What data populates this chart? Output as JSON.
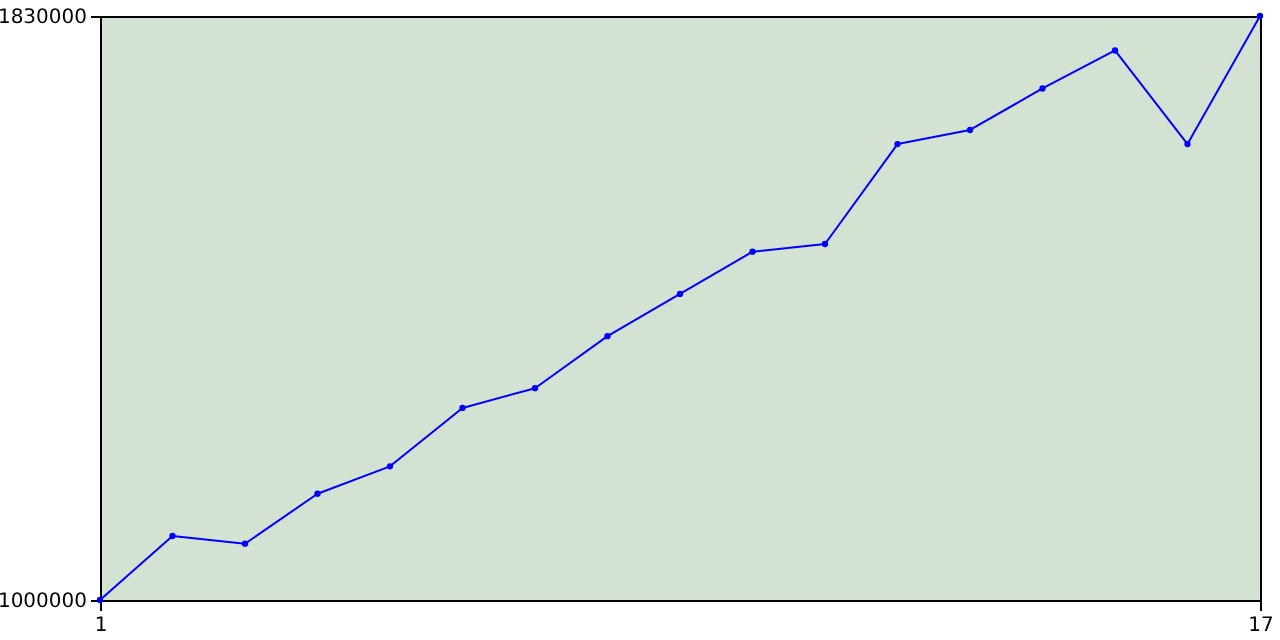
{
  "chart_data": {
    "type": "line",
    "x": [
      1,
      2,
      3,
      4,
      5,
      6,
      7,
      8,
      9,
      10,
      11,
      12,
      13,
      14,
      15,
      16,
      17
    ],
    "series": [
      {
        "color": "#0000ff",
        "values": [
          1000000,
          1091000,
          1080000,
          1151000,
          1190000,
          1273000,
          1301000,
          1375000,
          1435000,
          1495000,
          1506000,
          1648000,
          1668000,
          1727000,
          1781000,
          1648000,
          1830000
        ]
      }
    ],
    "xlim": [
      1,
      17
    ],
    "xticks": [
      1,
      17
    ],
    "ylim": [
      1000000,
      1830000
    ],
    "yticks": [
      1000000,
      1830000
    ],
    "grid": false,
    "marker": "circle",
    "line_style": "solid"
  }
}
